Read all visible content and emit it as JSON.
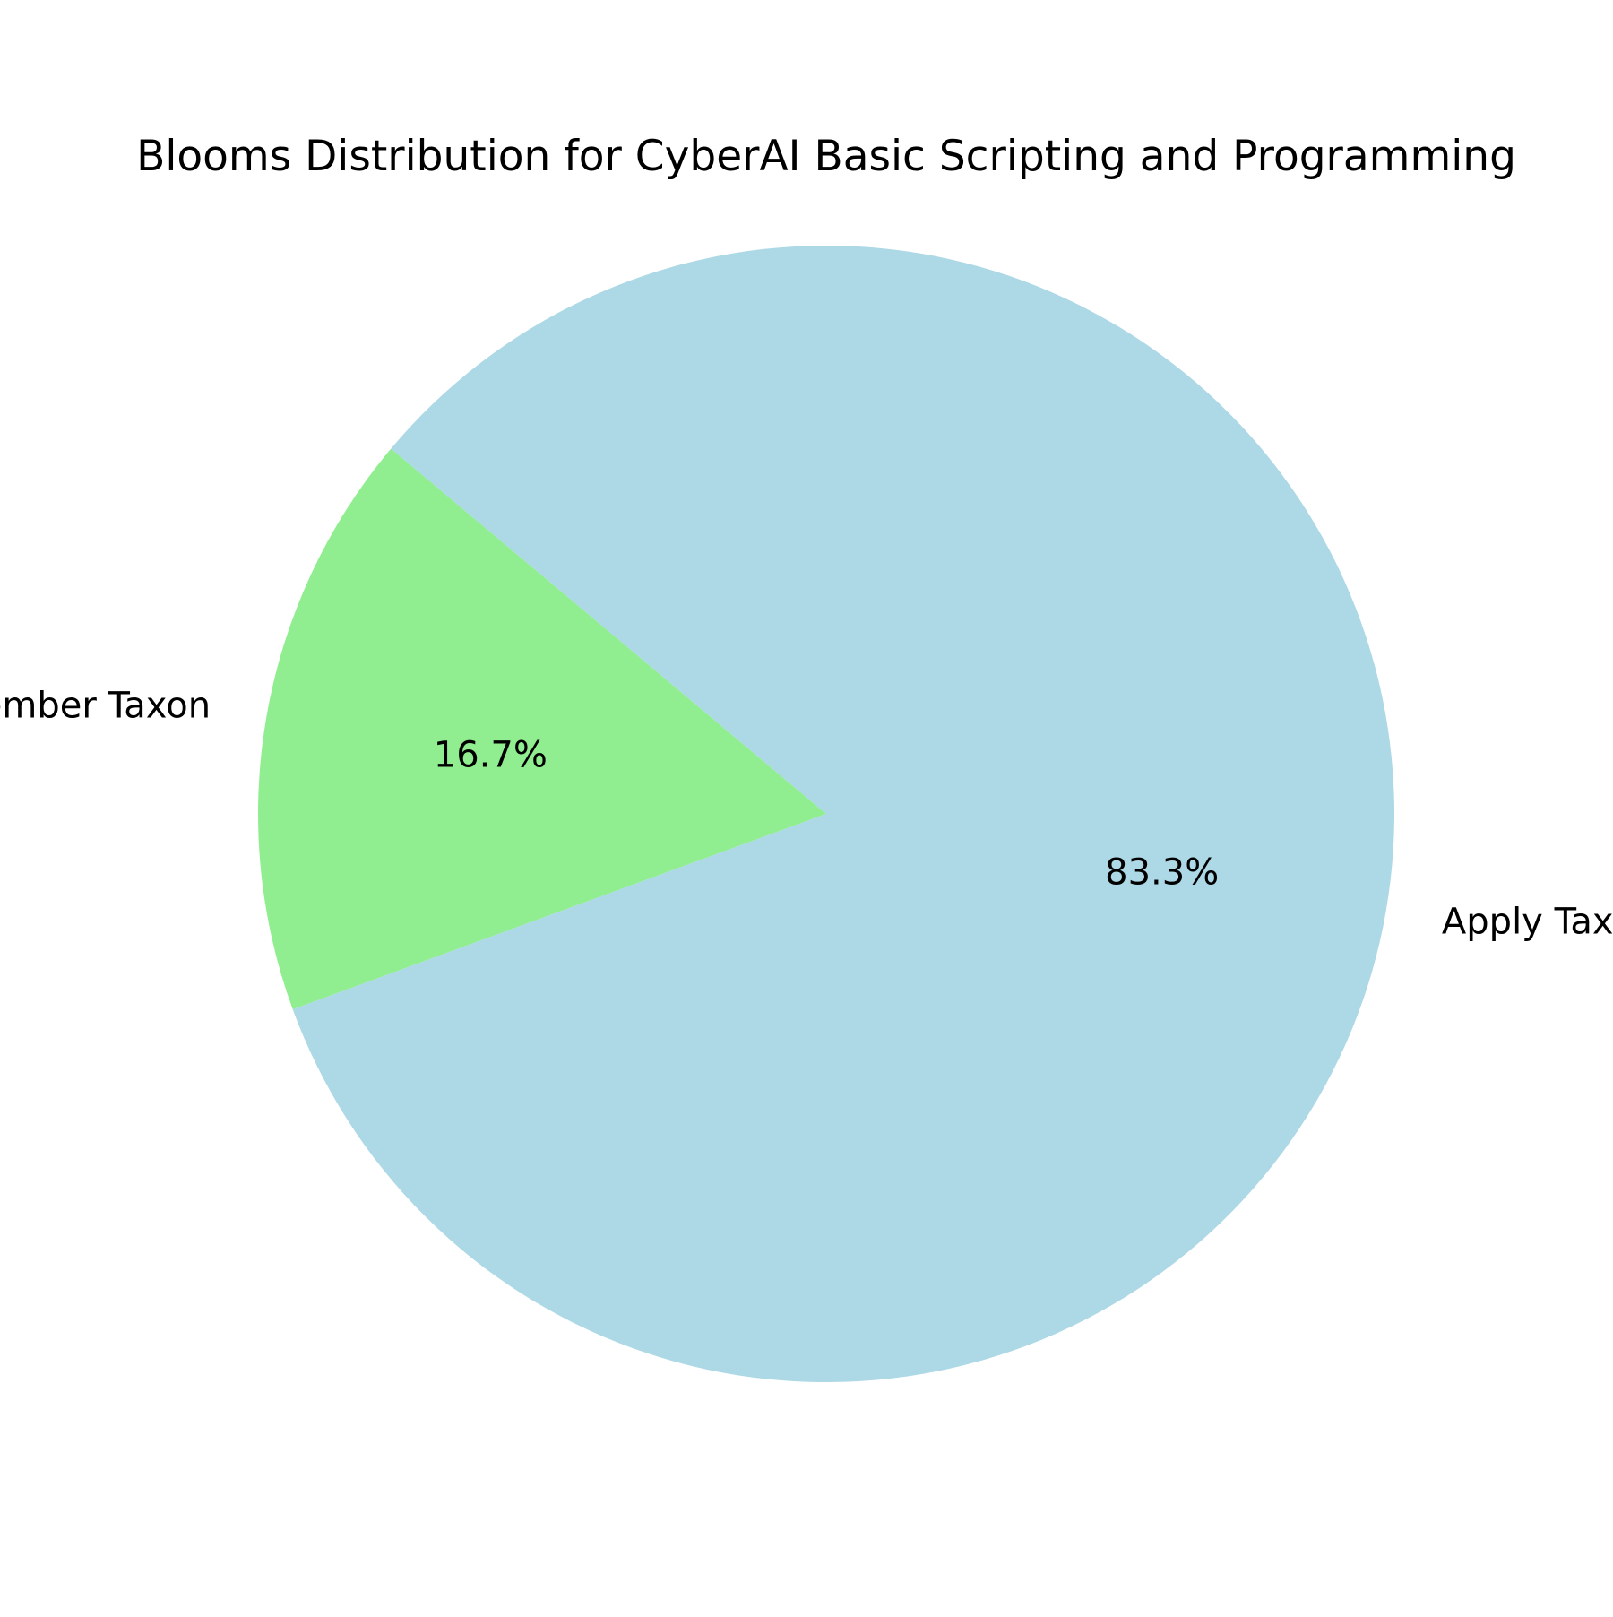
{
  "chart_data": {
    "type": "pie",
    "title": "Blooms Distribution for CyberAI Basic Scripting and Programming",
    "labels": [
      "Remember Taxon",
      "Apply Taxon"
    ],
    "values": [
      16.7,
      83.3
    ],
    "autopct_labels": [
      "16.7%",
      "83.3%"
    ],
    "colors": [
      "#90ee90",
      "#add8e6"
    ],
    "start_angle_deg": 140,
    "legend": "none"
  }
}
